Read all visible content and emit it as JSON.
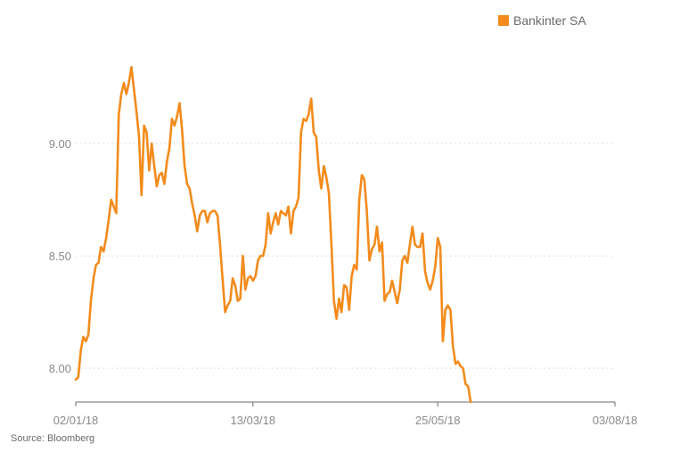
{
  "source_label": "Source: Bloomberg",
  "colors": {
    "series": "#f38b1c",
    "grid": "#dedede",
    "axis": "#6a6a6a",
    "text": "#8a8a8a"
  },
  "chart_data": {
    "type": "line",
    "legend_placement": "top-right",
    "grid": "horizontal-dotted",
    "ylim": [
      7.85,
      9.5
    ],
    "y_ticks": [
      8.0,
      8.5,
      9.0
    ],
    "y_tick_labels": [
      "8.00",
      "8.50",
      "9.00"
    ],
    "x_range": [
      "2018-01-02",
      "2018-08-03"
    ],
    "x_ticks": [
      "2018-01-02",
      "2018-03-13",
      "2018-05-25",
      "2018-08-03"
    ],
    "x_tick_labels": [
      "02/01/18",
      "13/03/18",
      "25/05/18",
      "03/08/18"
    ],
    "series": [
      {
        "name": "Bankinter SA",
        "color": "#f38b1c",
        "points": [
          [
            "2018-01-02",
            7.95
          ],
          [
            "2018-01-03",
            7.96
          ],
          [
            "2018-01-04",
            8.08
          ],
          [
            "2018-01-05",
            8.14
          ],
          [
            "2018-01-06",
            8.12
          ],
          [
            "2018-01-07",
            8.15
          ],
          [
            "2018-01-08",
            8.3
          ],
          [
            "2018-01-09",
            8.4
          ],
          [
            "2018-01-10",
            8.46
          ],
          [
            "2018-01-11",
            8.47
          ],
          [
            "2018-01-12",
            8.54
          ],
          [
            "2018-01-13",
            8.52
          ],
          [
            "2018-01-14",
            8.58
          ],
          [
            "2018-01-15",
            8.66
          ],
          [
            "2018-01-16",
            8.75
          ],
          [
            "2018-01-17",
            8.72
          ],
          [
            "2018-01-18",
            8.69
          ],
          [
            "2018-01-19",
            9.13
          ],
          [
            "2018-01-20",
            9.22
          ],
          [
            "2018-01-21",
            9.27
          ],
          [
            "2018-01-22",
            9.22
          ],
          [
            "2018-01-23",
            9.27
          ],
          [
            "2018-01-24",
            9.34
          ],
          [
            "2018-01-26",
            9.14
          ],
          [
            "2018-01-27",
            9.03
          ],
          [
            "2018-01-28",
            8.77
          ],
          [
            "2018-01-29",
            9.08
          ],
          [
            "2018-01-30",
            9.05
          ],
          [
            "2018-01-31",
            8.88
          ],
          [
            "2018-02-01",
            9.0
          ],
          [
            "2018-02-02",
            8.9
          ],
          [
            "2018-02-03",
            8.81
          ],
          [
            "2018-02-04",
            8.86
          ],
          [
            "2018-02-05",
            8.87
          ],
          [
            "2018-02-06",
            8.82
          ],
          [
            "2018-02-07",
            8.92
          ],
          [
            "2018-02-08",
            8.98
          ],
          [
            "2018-02-09",
            9.11
          ],
          [
            "2018-02-10",
            9.08
          ],
          [
            "2018-02-11",
            9.12
          ],
          [
            "2018-02-12",
            9.18
          ],
          [
            "2018-02-13",
            9.06
          ],
          [
            "2018-02-14",
            8.9
          ],
          [
            "2018-02-15",
            8.82
          ],
          [
            "2018-02-16",
            8.8
          ],
          [
            "2018-02-17",
            8.73
          ],
          [
            "2018-02-18",
            8.68
          ],
          [
            "2018-02-19",
            8.61
          ],
          [
            "2018-02-20",
            8.68
          ],
          [
            "2018-02-21",
            8.7
          ],
          [
            "2018-02-22",
            8.7
          ],
          [
            "2018-02-23",
            8.65
          ],
          [
            "2018-02-24",
            8.69
          ],
          [
            "2018-02-25",
            8.7
          ],
          [
            "2018-02-26",
            8.7
          ],
          [
            "2018-02-27",
            8.68
          ],
          [
            "2018-02-28",
            8.55
          ],
          [
            "2018-03-01",
            8.4
          ],
          [
            "2018-03-02",
            8.25
          ],
          [
            "2018-03-03",
            8.28
          ],
          [
            "2018-03-04",
            8.3
          ],
          [
            "2018-03-05",
            8.4
          ],
          [
            "2018-03-06",
            8.37
          ],
          [
            "2018-03-07",
            8.3
          ],
          [
            "2018-03-08",
            8.31
          ],
          [
            "2018-03-09",
            8.5
          ],
          [
            "2018-03-10",
            8.35
          ],
          [
            "2018-03-11",
            8.4
          ],
          [
            "2018-03-12",
            8.41
          ],
          [
            "2018-03-13",
            8.39
          ],
          [
            "2018-03-14",
            8.41
          ],
          [
            "2018-03-15",
            8.48
          ],
          [
            "2018-03-16",
            8.5
          ],
          [
            "2018-03-17",
            8.5
          ],
          [
            "2018-03-18",
            8.55
          ],
          [
            "2018-03-19",
            8.69
          ],
          [
            "2018-03-20",
            8.6
          ],
          [
            "2018-03-21",
            8.65
          ],
          [
            "2018-03-22",
            8.69
          ],
          [
            "2018-03-23",
            8.64
          ],
          [
            "2018-03-24",
            8.7
          ],
          [
            "2018-03-25",
            8.69
          ],
          [
            "2018-03-26",
            8.68
          ],
          [
            "2018-03-27",
            8.72
          ],
          [
            "2018-03-28",
            8.6
          ],
          [
            "2018-03-29",
            8.7
          ],
          [
            "2018-03-30",
            8.72
          ],
          [
            "2018-03-31",
            8.76
          ],
          [
            "2018-04-01",
            9.05
          ],
          [
            "2018-04-02",
            9.11
          ],
          [
            "2018-04-03",
            9.1
          ],
          [
            "2018-04-04",
            9.13
          ],
          [
            "2018-04-05",
            9.2
          ],
          [
            "2018-04-06",
            9.05
          ],
          [
            "2018-04-07",
            9.03
          ],
          [
            "2018-04-08",
            8.88
          ],
          [
            "2018-04-09",
            8.8
          ],
          [
            "2018-04-10",
            8.9
          ],
          [
            "2018-04-11",
            8.85
          ],
          [
            "2018-04-12",
            8.78
          ],
          [
            "2018-04-13",
            8.55
          ],
          [
            "2018-04-14",
            8.3
          ],
          [
            "2018-04-15",
            8.22
          ],
          [
            "2018-04-16",
            8.31
          ],
          [
            "2018-04-17",
            8.25
          ],
          [
            "2018-04-18",
            8.37
          ],
          [
            "2018-04-19",
            8.36
          ],
          [
            "2018-04-20",
            8.26
          ],
          [
            "2018-04-21",
            8.41
          ],
          [
            "2018-04-22",
            8.46
          ],
          [
            "2018-04-23",
            8.44
          ],
          [
            "2018-04-24",
            8.75
          ],
          [
            "2018-04-25",
            8.86
          ],
          [
            "2018-04-26",
            8.84
          ],
          [
            "2018-04-27",
            8.7
          ],
          [
            "2018-04-28",
            8.48
          ],
          [
            "2018-04-29",
            8.53
          ],
          [
            "2018-04-30",
            8.55
          ],
          [
            "2018-05-01",
            8.63
          ],
          [
            "2018-05-02",
            8.52
          ],
          [
            "2018-05-03",
            8.56
          ],
          [
            "2018-05-04",
            8.3
          ],
          [
            "2018-05-05",
            8.33
          ],
          [
            "2018-05-06",
            8.34
          ],
          [
            "2018-05-07",
            8.39
          ],
          [
            "2018-05-08",
            8.34
          ],
          [
            "2018-05-09",
            8.29
          ],
          [
            "2018-05-10",
            8.35
          ],
          [
            "2018-05-11",
            8.48
          ],
          [
            "2018-05-12",
            8.5
          ],
          [
            "2018-05-13",
            8.47
          ],
          [
            "2018-05-14",
            8.55
          ],
          [
            "2018-05-15",
            8.63
          ],
          [
            "2018-05-16",
            8.55
          ],
          [
            "2018-05-17",
            8.54
          ],
          [
            "2018-05-18",
            8.54
          ],
          [
            "2018-05-19",
            8.6
          ],
          [
            "2018-05-20",
            8.43
          ],
          [
            "2018-05-21",
            8.38
          ],
          [
            "2018-05-22",
            8.35
          ],
          [
            "2018-05-23",
            8.39
          ],
          [
            "2018-05-24",
            8.45
          ],
          [
            "2018-05-25",
            8.58
          ],
          [
            "2018-05-26",
            8.54
          ],
          [
            "2018-05-27",
            8.12
          ],
          [
            "2018-05-28",
            8.26
          ],
          [
            "2018-05-29",
            8.28
          ],
          [
            "2018-05-30",
            8.26
          ],
          [
            "2018-05-31",
            8.1
          ],
          [
            "2018-06-01",
            8.02
          ],
          [
            "2018-06-02",
            8.03
          ],
          [
            "2018-06-03",
            8.01
          ],
          [
            "2018-06-04",
            8.0
          ],
          [
            "2018-06-05",
            7.93
          ],
          [
            "2018-06-06",
            7.92
          ],
          [
            "2018-06-07",
            7.85
          ]
        ]
      }
    ]
  }
}
